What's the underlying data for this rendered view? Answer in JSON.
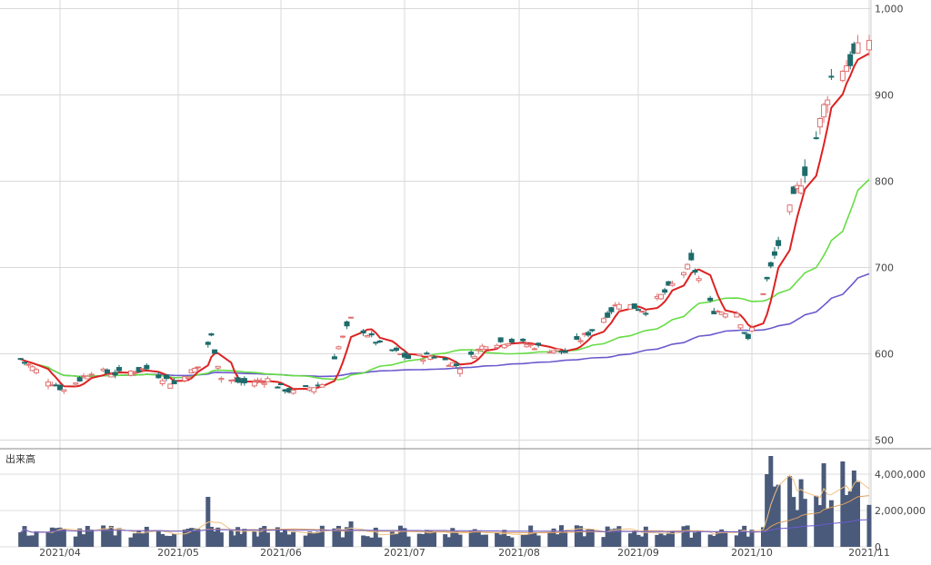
{
  "chart_data": [
    {
      "type": "candlestick",
      "y_ticks": [
        "500",
        "600",
        "700",
        "800",
        "900",
        "1,000"
      ],
      "y_tick_values": [
        500,
        600,
        700,
        800,
        900,
        1000
      ],
      "ylim": [
        490,
        1010
      ],
      "x_ticks": [
        "2021/04",
        "2021/05",
        "2021/06",
        "2021/07",
        "2021/08",
        "2021/09",
        "2021/10",
        "2021/11"
      ],
      "grid": true,
      "candle_colors": {
        "up": "#e07070",
        "down": "#1e6b6b"
      },
      "moving_average_colors": {
        "short": "#dd2222",
        "medium": "#66dd44",
        "long": "#6a5acd"
      },
      "period": {
        "start": "2021/03/22",
        "end": "2021/11/01"
      },
      "close_anchors": [
        {
          "date": "2021/03/22",
          "close": 594
        },
        {
          "date": "2021/03/29",
          "close": 570
        },
        {
          "date": "2021/04/02",
          "close": 558
        },
        {
          "date": "2021/04/09",
          "close": 580
        },
        {
          "date": "2021/04/16",
          "close": 577
        },
        {
          "date": "2021/04/23",
          "close": 583
        },
        {
          "date": "2021/04/30",
          "close": 565
        },
        {
          "date": "2021/05/07",
          "close": 585
        },
        {
          "date": "2021/05/11",
          "close": 620
        },
        {
          "date": "2021/05/14",
          "close": 572
        },
        {
          "date": "2021/05/21",
          "close": 566
        },
        {
          "date": "2021/05/28",
          "close": 570
        },
        {
          "date": "2021/06/04",
          "close": 555
        },
        {
          "date": "2021/06/11",
          "close": 565
        },
        {
          "date": "2021/06/18",
          "close": 640
        },
        {
          "date": "2021/06/25",
          "close": 610
        },
        {
          "date": "2021/07/02",
          "close": 595
        },
        {
          "date": "2021/07/09",
          "close": 598
        },
        {
          "date": "2021/07/16",
          "close": 585
        },
        {
          "date": "2021/07/23",
          "close": 612
        },
        {
          "date": "2021/07/30",
          "close": 615
        },
        {
          "date": "2021/08/06",
          "close": 608
        },
        {
          "date": "2021/08/13",
          "close": 602
        },
        {
          "date": "2021/08/20",
          "close": 628
        },
        {
          "date": "2021/08/27",
          "close": 660
        },
        {
          "date": "2021/09/03",
          "close": 650
        },
        {
          "date": "2021/09/10",
          "close": 680
        },
        {
          "date": "2021/09/15",
          "close": 705
        },
        {
          "date": "2021/09/21",
          "close": 650
        },
        {
          "date": "2021/09/27",
          "close": 648
        },
        {
          "date": "2021/09/30",
          "close": 615
        },
        {
          "date": "2021/10/06",
          "close": 700
        },
        {
          "date": "2021/10/12",
          "close": 780
        },
        {
          "date": "2021/10/18",
          "close": 850
        },
        {
          "date": "2021/10/22",
          "close": 920
        },
        {
          "date": "2021/10/27",
          "close": 940
        },
        {
          "date": "2021/11/01",
          "close": 965
        }
      ]
    },
    {
      "type": "bar",
      "title": "出来高",
      "y_ticks": [
        "0",
        "2,000,000",
        "4,000,000"
      ],
      "y_tick_values": [
        0,
        2000000,
        4000000
      ],
      "ylim": [
        0,
        5200000
      ],
      "x_ticks": [
        "2021/04",
        "2021/05",
        "2021/06",
        "2021/07",
        "2021/08",
        "2021/09",
        "2021/10",
        "2021/11"
      ],
      "bar_color": "#4a5a7a",
      "volume_peaks": [
        {
          "date": "2021/05/10",
          "volume": 2750000
        },
        {
          "date": "2021/06/18",
          "volume": 1400000
        },
        {
          "date": "2021/10/05",
          "volume": 4000000
        },
        {
          "date": "2021/10/06",
          "volume": 5000000
        },
        {
          "date": "2021/10/20",
          "volume": 4600000
        },
        {
          "date": "2021/10/25",
          "volume": 4700000
        },
        {
          "date": "2021/10/28",
          "volume": 4200000
        }
      ]
    }
  ]
}
